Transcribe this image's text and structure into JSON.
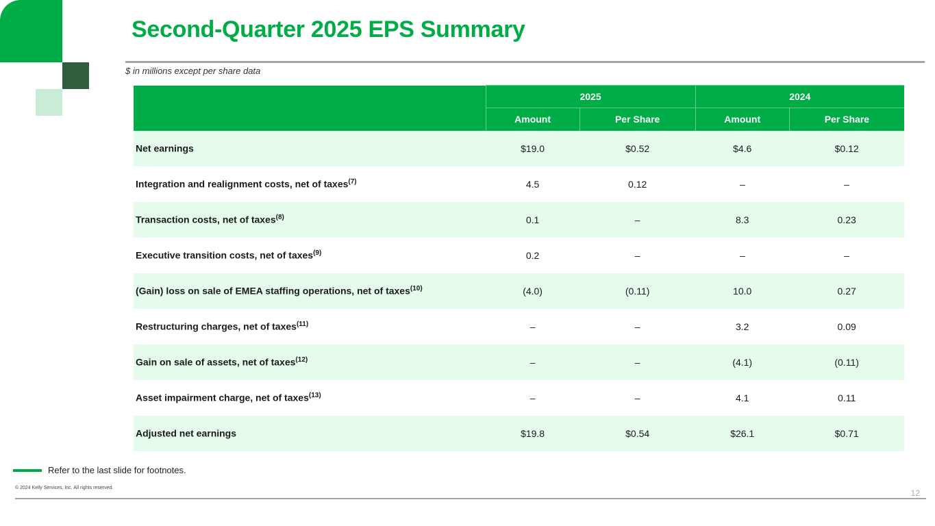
{
  "title": "Second-Quarter 2025 EPS Summary",
  "subtitle": "$ in millions except per share data",
  "table": {
    "years": [
      "2025",
      "2024"
    ],
    "subheaders": [
      "Amount",
      "Per Share",
      "Amount",
      "Per Share"
    ],
    "rows": [
      {
        "label": "Net earnings",
        "note": "",
        "values": [
          "$19.0",
          "$0.52",
          "$4.6",
          "$0.12"
        ]
      },
      {
        "label": "Integration and realignment costs, net of taxes",
        "note": "(7)",
        "values": [
          "4.5",
          "0.12",
          "–",
          "–"
        ]
      },
      {
        "label": "Transaction costs, net of taxes",
        "note": "(8)",
        "values": [
          "0.1",
          "–",
          "8.3",
          "0.23"
        ]
      },
      {
        "label": "Executive transition costs, net of taxes",
        "note": "(9)",
        "values": [
          "0.2",
          "–",
          "–",
          "–"
        ]
      },
      {
        "label": "(Gain) loss on sale of EMEA staffing operations, net of taxes",
        "note": "(10)",
        "values": [
          "(4.0)",
          "(0.11)",
          "10.0",
          "0.27"
        ]
      },
      {
        "label": "Restructuring charges, net of taxes",
        "note": "(11)",
        "values": [
          "–",
          "–",
          "3.2",
          "0.09"
        ]
      },
      {
        "label": "Gain on sale of assets, net of taxes",
        "note": "(12)",
        "values": [
          "–",
          "–",
          "(4.1)",
          "(0.11)"
        ]
      },
      {
        "label": "Asset impairment charge, net of taxes",
        "note": "(13)",
        "values": [
          "–",
          "–",
          "4.1",
          "0.11"
        ]
      },
      {
        "label": "Adjusted net earnings",
        "note": "",
        "values": [
          "$19.8",
          "$0.54",
          "$26.1",
          "$0.71"
        ]
      }
    ]
  },
  "footnote": "Refer to the last slide for footnotes.",
  "copyright": "© 2024 Kelly Services, Inc. All rights reserved.",
  "page_number": "12"
}
